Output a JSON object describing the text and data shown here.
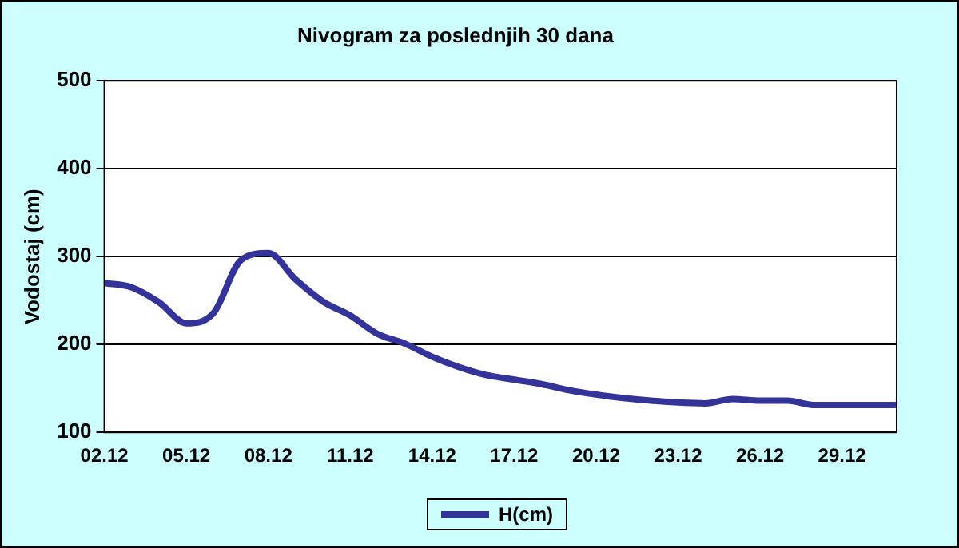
{
  "chart_data": {
    "type": "line",
    "title": "Nivogram za poslednjih 30 dana",
    "ylabel": "Vodostaj (cm)",
    "categories": [
      "02.12",
      null,
      null,
      "05.12",
      null,
      null,
      "08.12",
      null,
      null,
      "11.12",
      null,
      null,
      "14.12",
      null,
      null,
      "17.12",
      null,
      null,
      "20.12",
      null,
      null,
      "23.12",
      null,
      null,
      "26.12",
      null,
      null,
      "29.12",
      null,
      null
    ],
    "series": [
      {
        "name": "H(cm)",
        "color": "#333399",
        "values": [
          270,
          265,
          248,
          224,
          236,
          296,
          304,
          274,
          249,
          233,
          212,
          201,
          186,
          174,
          165,
          160,
          155,
          148,
          143,
          139,
          136,
          134,
          133,
          138,
          136,
          136,
          131,
          131,
          131,
          131
        ]
      }
    ],
    "ylim": [
      100,
      500
    ],
    "yticks": [
      100,
      200,
      300,
      400,
      500
    ],
    "grid": "y",
    "legend": "bottom",
    "marker": "none",
    "line_style": "solid"
  }
}
